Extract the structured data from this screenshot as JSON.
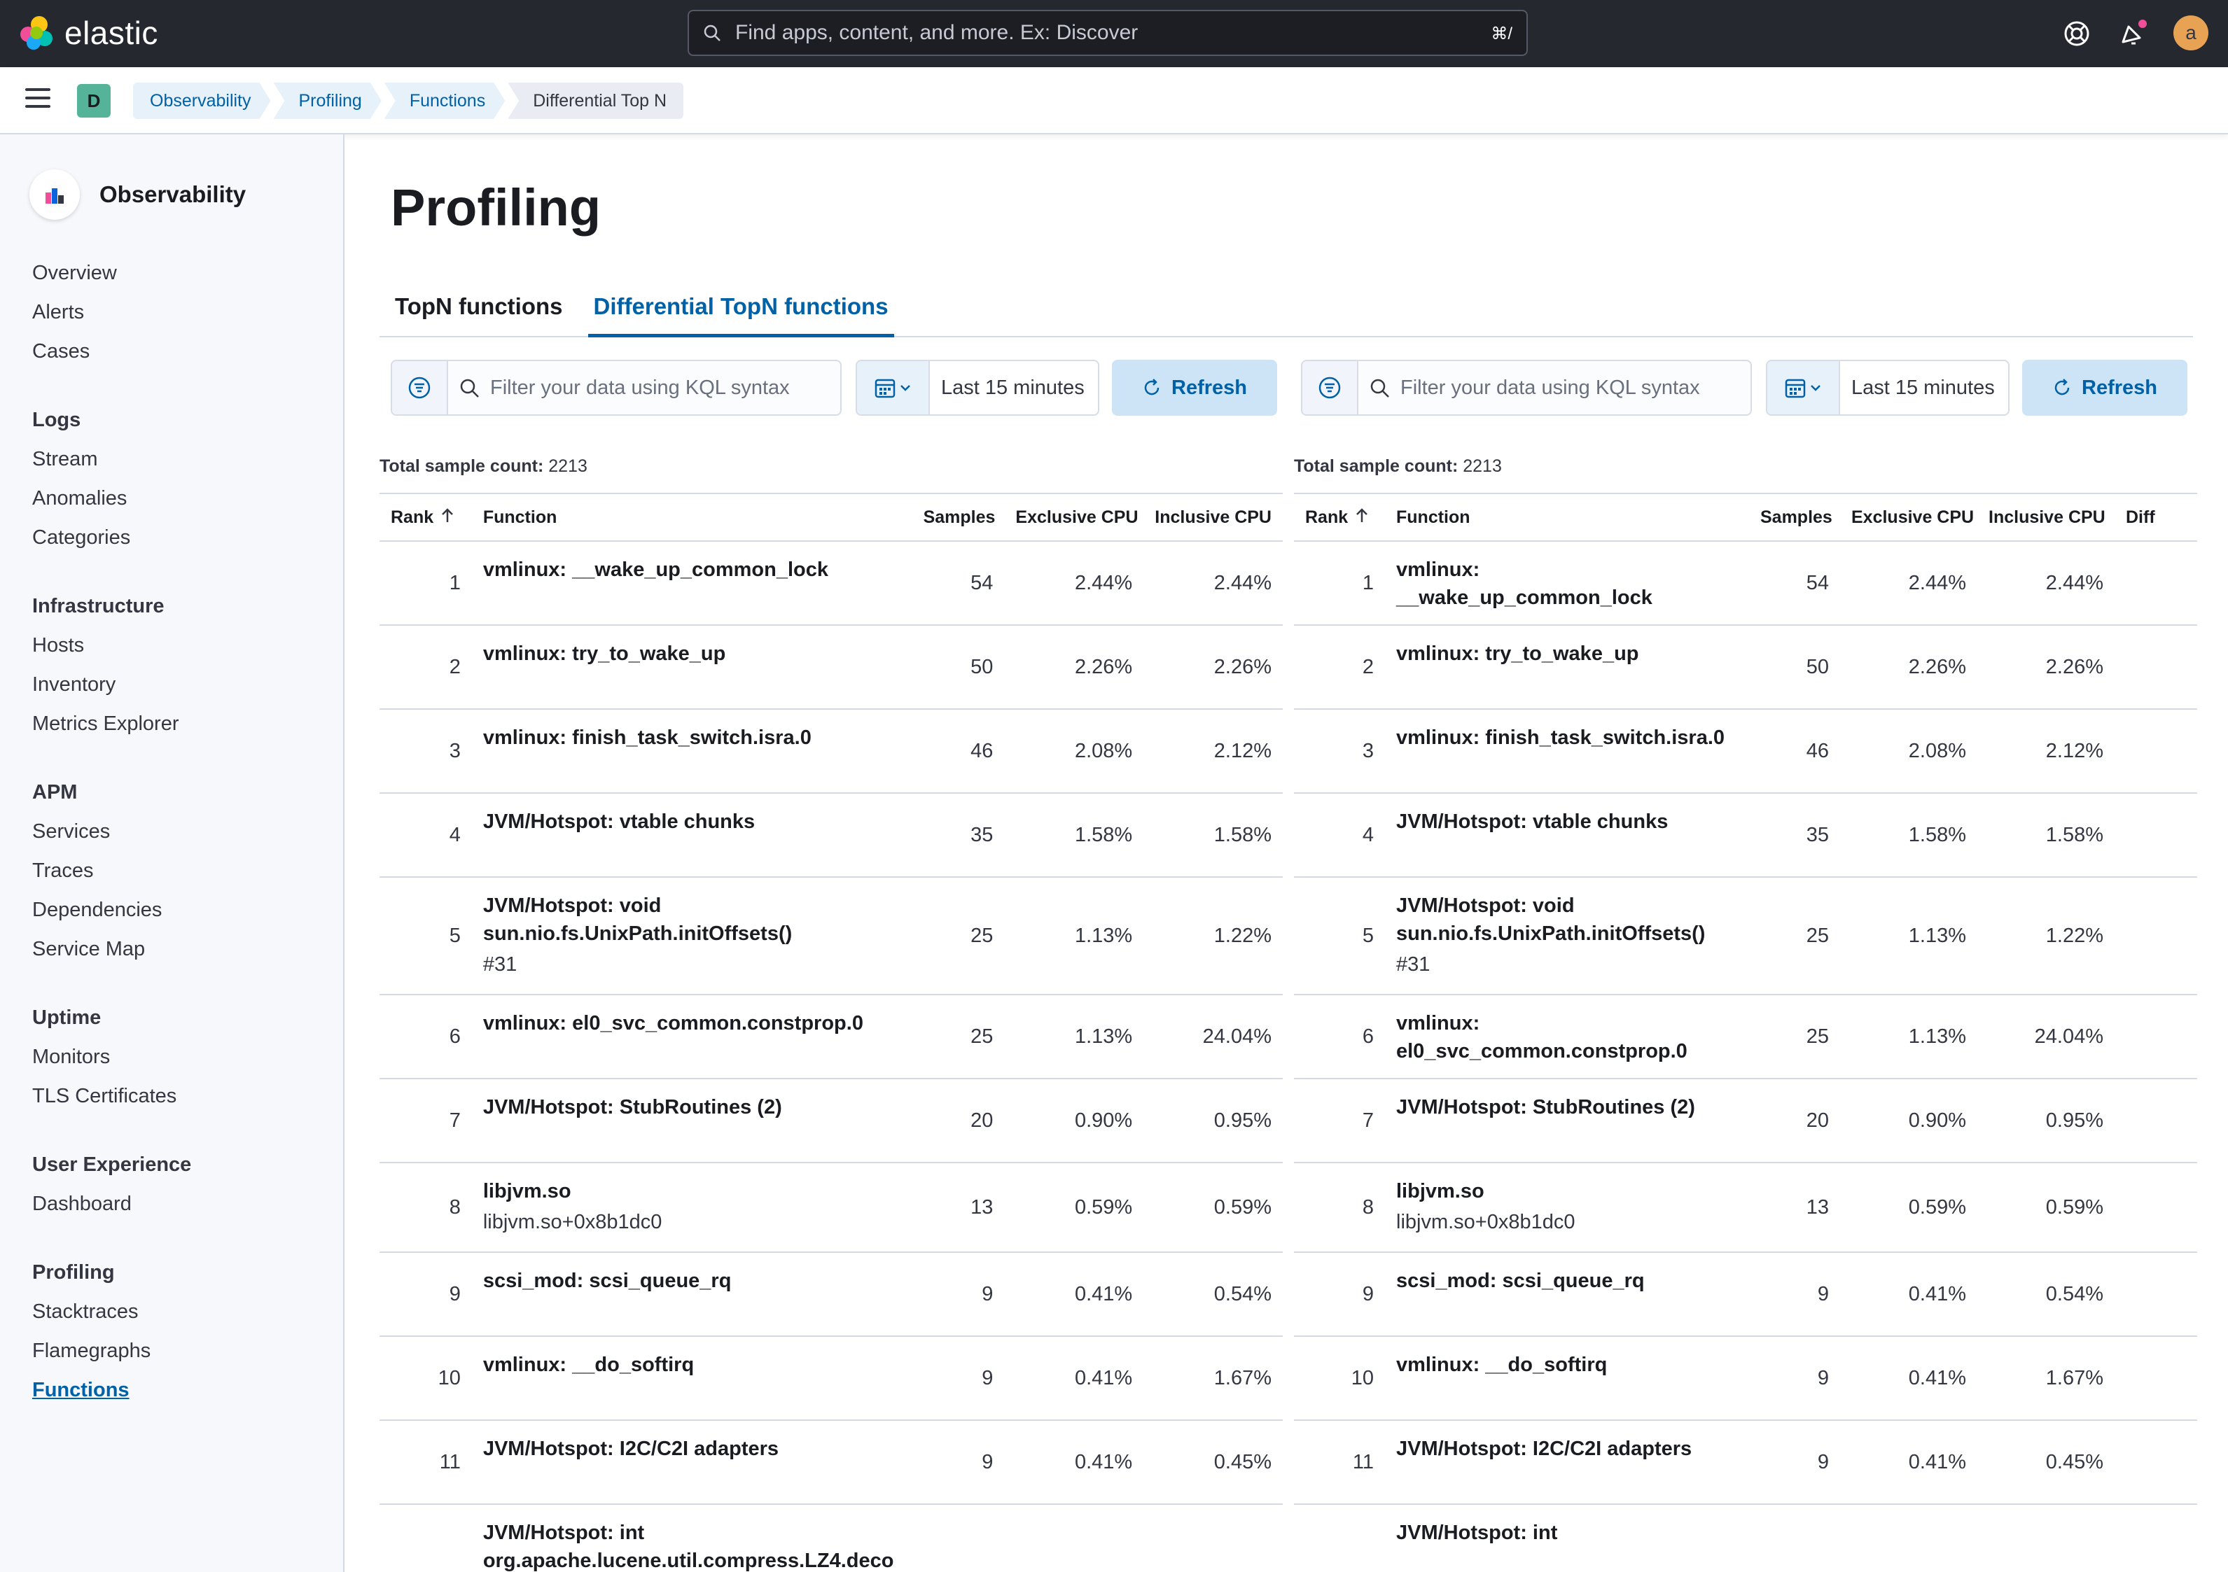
{
  "header": {
    "brand": "elastic",
    "search_placeholder": "Find apps, content, and more. Ex: Discover",
    "search_shortcut": "⌘/",
    "avatar_initial": "a",
    "space_initial": "D"
  },
  "breadcrumbs": [
    "Observability",
    "Profiling",
    "Functions",
    "Differential Top N"
  ],
  "sidebar": {
    "title": "Observability",
    "top_items": [
      "Overview",
      "Alerts",
      "Cases"
    ],
    "groups": [
      {
        "title": "Logs",
        "items": [
          "Stream",
          "Anomalies",
          "Categories"
        ]
      },
      {
        "title": "Infrastructure",
        "items": [
          "Hosts",
          "Inventory",
          "Metrics Explorer"
        ]
      },
      {
        "title": "APM",
        "items": [
          "Services",
          "Traces",
          "Dependencies",
          "Service Map"
        ]
      },
      {
        "title": "Uptime",
        "items": [
          "Monitors",
          "TLS Certificates"
        ]
      },
      {
        "title": "User Experience",
        "items": [
          "Dashboard"
        ]
      },
      {
        "title": "Profiling",
        "items": [
          "Stacktraces",
          "Flamegraphs",
          "Functions"
        ]
      }
    ],
    "active_item": "Functions"
  },
  "page": {
    "title": "Profiling",
    "tabs": [
      "TopN functions",
      "Differential TopN functions"
    ],
    "active_tab": "Differential TopN functions"
  },
  "filter": {
    "kql_placeholder": "Filter your data using KQL syntax",
    "time_range": "Last 15 minutes",
    "refresh_label": "Refresh"
  },
  "left_panel": {
    "sample_count_label": "Total sample count:",
    "sample_count": "2213",
    "columns": [
      "Rank",
      "Function",
      "Samples",
      "Exclusive CPU",
      "Inclusive CPU"
    ],
    "rows": [
      {
        "rank": "1",
        "function": "vmlinux: __wake_up_common_lock",
        "sub": "",
        "samples": "54",
        "exclusive": "2.44%",
        "inclusive": "2.44%"
      },
      {
        "rank": "2",
        "function": "vmlinux: try_to_wake_up",
        "sub": "",
        "samples": "50",
        "exclusive": "2.26%",
        "inclusive": "2.26%"
      },
      {
        "rank": "3",
        "function": "vmlinux: finish_task_switch.isra.0",
        "sub": "",
        "samples": "46",
        "exclusive": "2.08%",
        "inclusive": "2.12%"
      },
      {
        "rank": "4",
        "function": "JVM/Hotspot: vtable chunks",
        "sub": "",
        "samples": "35",
        "exclusive": "1.58%",
        "inclusive": "1.58%"
      },
      {
        "rank": "5",
        "function": "JVM/Hotspot: void sun.nio.fs.UnixPath.initOffsets()",
        "sub": "#31",
        "samples": "25",
        "exclusive": "1.13%",
        "inclusive": "1.22%"
      },
      {
        "rank": "6",
        "function": "vmlinux: el0_svc_common.constprop.0",
        "sub": "",
        "samples": "25",
        "exclusive": "1.13%",
        "inclusive": "24.04%"
      },
      {
        "rank": "7",
        "function": "JVM/Hotspot: StubRoutines (2)",
        "sub": "",
        "samples": "20",
        "exclusive": "0.90%",
        "inclusive": "0.95%"
      },
      {
        "rank": "8",
        "function": "libjvm.so",
        "sub": "libjvm.so+0x8b1dc0",
        "samples": "13",
        "exclusive": "0.59%",
        "inclusive": "0.59%"
      },
      {
        "rank": "9",
        "function": "scsi_mod: scsi_queue_rq",
        "sub": "",
        "samples": "9",
        "exclusive": "0.41%",
        "inclusive": "0.54%"
      },
      {
        "rank": "10",
        "function": "vmlinux: __do_softirq",
        "sub": "",
        "samples": "9",
        "exclusive": "0.41%",
        "inclusive": "1.67%"
      },
      {
        "rank": "11",
        "function": "JVM/Hotspot: I2C/C2I adapters",
        "sub": "",
        "samples": "9",
        "exclusive": "0.41%",
        "inclusive": "0.45%"
      },
      {
        "rank": "",
        "function": "JVM/Hotspot: int org.apache.lucene.util.compress.LZ4.deco",
        "sub": "",
        "samples": "",
        "exclusive": "",
        "inclusive": ""
      }
    ]
  },
  "right_panel": {
    "sample_count_label": "Total sample count:",
    "sample_count": "2213",
    "columns": [
      "Rank",
      "Function",
      "Samples",
      "Exclusive CPU",
      "Inclusive CPU",
      "Diff"
    ],
    "rows": [
      {
        "rank": "1",
        "function": "vmlinux: __wake_up_common_lock",
        "sub": "",
        "samples": "54",
        "exclusive": "2.44%",
        "inclusive": "2.44%"
      },
      {
        "rank": "2",
        "function": "vmlinux: try_to_wake_up",
        "sub": "",
        "samples": "50",
        "exclusive": "2.26%",
        "inclusive": "2.26%"
      },
      {
        "rank": "3",
        "function": "vmlinux: finish_task_switch.isra.0",
        "sub": "",
        "samples": "46",
        "exclusive": "2.08%",
        "inclusive": "2.12%"
      },
      {
        "rank": "4",
        "function": "JVM/Hotspot: vtable chunks",
        "sub": "",
        "samples": "35",
        "exclusive": "1.58%",
        "inclusive": "1.58%"
      },
      {
        "rank": "5",
        "function": "JVM/Hotspot: void sun.nio.fs.UnixPath.initOffsets()",
        "sub": "#31",
        "samples": "25",
        "exclusive": "1.13%",
        "inclusive": "1.22%"
      },
      {
        "rank": "6",
        "function": "vmlinux: el0_svc_common.constprop.0",
        "sub": "",
        "samples": "25",
        "exclusive": "1.13%",
        "inclusive": "24.04%"
      },
      {
        "rank": "7",
        "function": "JVM/Hotspot: StubRoutines (2)",
        "sub": "",
        "samples": "20",
        "exclusive": "0.90%",
        "inclusive": "0.95%"
      },
      {
        "rank": "8",
        "function": "libjvm.so",
        "sub": "libjvm.so+0x8b1dc0",
        "samples": "13",
        "exclusive": "0.59%",
        "inclusive": "0.59%"
      },
      {
        "rank": "9",
        "function": "scsi_mod: scsi_queue_rq",
        "sub": "",
        "samples": "9",
        "exclusive": "0.41%",
        "inclusive": "0.54%"
      },
      {
        "rank": "10",
        "function": "vmlinux: __do_softirq",
        "sub": "",
        "samples": "9",
        "exclusive": "0.41%",
        "inclusive": "1.67%"
      },
      {
        "rank": "11",
        "function": "JVM/Hotspot: I2C/C2I adapters",
        "sub": "",
        "samples": "9",
        "exclusive": "0.41%",
        "inclusive": "0.45%"
      },
      {
        "rank": "",
        "function": "JVM/Hotspot: int",
        "sub": "",
        "samples": "",
        "exclusive": "",
        "inclusive": ""
      }
    ]
  },
  "colors": {
    "topbar": "#25282f",
    "accent": "#0061a6",
    "space_badge": "#54b399",
    "avatar": "#e7a353",
    "notification_dot": "#f04e98"
  }
}
